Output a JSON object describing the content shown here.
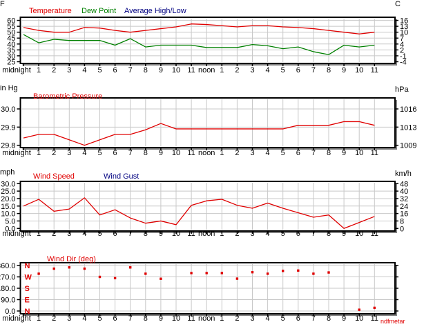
{
  "page": {
    "watermark": "ndfmetar"
  },
  "x_labels": [
    "midnight",
    "1",
    "2",
    "3",
    "4",
    "5",
    "6",
    "7",
    "8",
    "9",
    "10",
    "11",
    "noon",
    "1",
    "2",
    "3",
    "4",
    "5",
    "6",
    "7",
    "8",
    "9",
    "10",
    "11"
  ],
  "colors": {
    "red": "#e00000",
    "green": "#008000",
    "navy": "#000080",
    "grid": "#c8c8c8",
    "axis": "#000000",
    "shadow": "#808080"
  },
  "chart_data": [
    {
      "type": "line",
      "unit_left": "F",
      "unit_right": "C",
      "legend": [
        {
          "label": "Temperature",
          "color": "#e00000"
        },
        {
          "label": "Dew Point",
          "color": "#008000"
        },
        {
          "label": "Average High/Low",
          "color": "#000080"
        }
      ],
      "y_range": [
        24.7,
        61.5
      ],
      "y_ticks": [
        {
          "value": 60,
          "left": "60",
          "right": "16"
        },
        {
          "value": 55,
          "left": "55",
          "right": "13"
        },
        {
          "value": 50,
          "left": "50",
          "right": "10"
        },
        {
          "value": 45,
          "left": "45",
          "right": "7"
        },
        {
          "value": 40,
          "left": "40",
          "right": "4"
        },
        {
          "value": 35,
          "left": "35",
          "right": "2"
        },
        {
          "value": 30,
          "left": "30",
          "right": "-1"
        },
        {
          "value": 25,
          "left": "25",
          "right": "-4"
        }
      ],
      "series": [
        {
          "name": "Temperature",
          "color": "#e00000",
          "values": [
            54,
            51.5,
            50,
            50,
            54,
            53.5,
            51.5,
            50,
            51.5,
            53,
            54.5,
            57,
            56.5,
            55.5,
            54.5,
            55.5,
            55.5,
            54.5,
            54,
            53,
            51.5,
            50,
            48.5,
            50
          ]
        },
        {
          "name": "Dew Point",
          "color": "#008000",
          "values": [
            48,
            41,
            44,
            43,
            43,
            43,
            39,
            44.5,
            37.5,
            39,
            39,
            39,
            37,
            37,
            37,
            39.5,
            38.5,
            36,
            37.5,
            33.5,
            31,
            39,
            37.5,
            39
          ]
        }
      ]
    },
    {
      "type": "line",
      "unit_left": "in Hg",
      "unit_right": "hPa",
      "legend": [
        {
          "label": "Barometric Pressure",
          "color": "#e00000"
        }
      ],
      "y_range": [
        29.795,
        30.053
      ],
      "y_ticks": [
        {
          "value": 30.0,
          "left": "30.0",
          "right": "1016"
        },
        {
          "value": 29.9,
          "left": "29.9",
          "right": "1013"
        },
        {
          "value": 29.8,
          "left": "29.8",
          "right": "1009"
        }
      ],
      "series": [
        {
          "name": "Barometric Pressure",
          "color": "#e00000",
          "values": [
            29.84,
            29.86,
            29.86,
            29.83,
            29.8,
            29.83,
            29.86,
            29.86,
            29.885,
            29.92,
            29.89,
            29.89,
            29.89,
            29.89,
            29.89,
            29.89,
            29.89,
            29.89,
            29.91,
            29.91,
            29.91,
            29.93,
            29.93,
            29.91
          ]
        }
      ]
    },
    {
      "type": "line",
      "unit_left": "mph",
      "unit_right": "km/h",
      "legend": [
        {
          "label": "Wind Speed",
          "color": "#e00000"
        },
        {
          "label": "Wind Gust",
          "color": "#000080"
        }
      ],
      "y_range": [
        -0.8,
        30.6
      ],
      "y_ticks": [
        {
          "value": 30,
          "left": "30.0",
          "right": "48"
        },
        {
          "value": 25,
          "left": "25.0",
          "right": "40"
        },
        {
          "value": 20,
          "left": "20.0",
          "right": "32"
        },
        {
          "value": 15,
          "left": "15.0",
          "right": "24"
        },
        {
          "value": 10,
          "left": "10.0",
          "right": "16"
        },
        {
          "value": 5,
          "left": "5.0",
          "right": "8"
        },
        {
          "value": 0,
          "left": "0.0",
          "right": "0"
        }
      ],
      "series": [
        {
          "name": "Wind Speed",
          "color": "#e00000",
          "values": [
            15,
            19.5,
            11.5,
            13,
            20.5,
            9,
            12.5,
            7,
            3.5,
            5,
            2.5,
            15.5,
            18.5,
            19.5,
            15.5,
            13.5,
            17,
            13.5,
            10.5,
            7.5,
            9,
            0,
            4,
            8
          ]
        }
      ]
    },
    {
      "type": "scatter",
      "unit_left": "",
      "unit_right": "",
      "legend": [
        {
          "label": "Wind Dir (deg)",
          "color": "#e00000"
        }
      ],
      "y_range": [
        -11,
        371
      ],
      "y_ticks": [
        {
          "value": 360,
          "left": "360.0",
          "right": "",
          "letter": "N"
        },
        {
          "value": 270,
          "left": "270.0",
          "right": "",
          "letter": "W"
        },
        {
          "value": 180,
          "left": "180.0",
          "right": "",
          "letter": "S"
        },
        {
          "value": 90,
          "left": "90.0",
          "right": "",
          "letter": "E"
        },
        {
          "value": 0,
          "left": "0.0",
          "right": "",
          "letter": "N"
        }
      ],
      "series": [
        {
          "name": "Wind Dir",
          "color": "#e00000",
          "values": [
            null,
            295,
            335,
            345,
            335,
            270,
            260,
            345,
            295,
            255,
            null,
            300,
            300,
            300,
            256,
            307,
            295,
            317,
            320,
            295,
            305,
            null,
            10,
            25
          ]
        }
      ]
    }
  ]
}
